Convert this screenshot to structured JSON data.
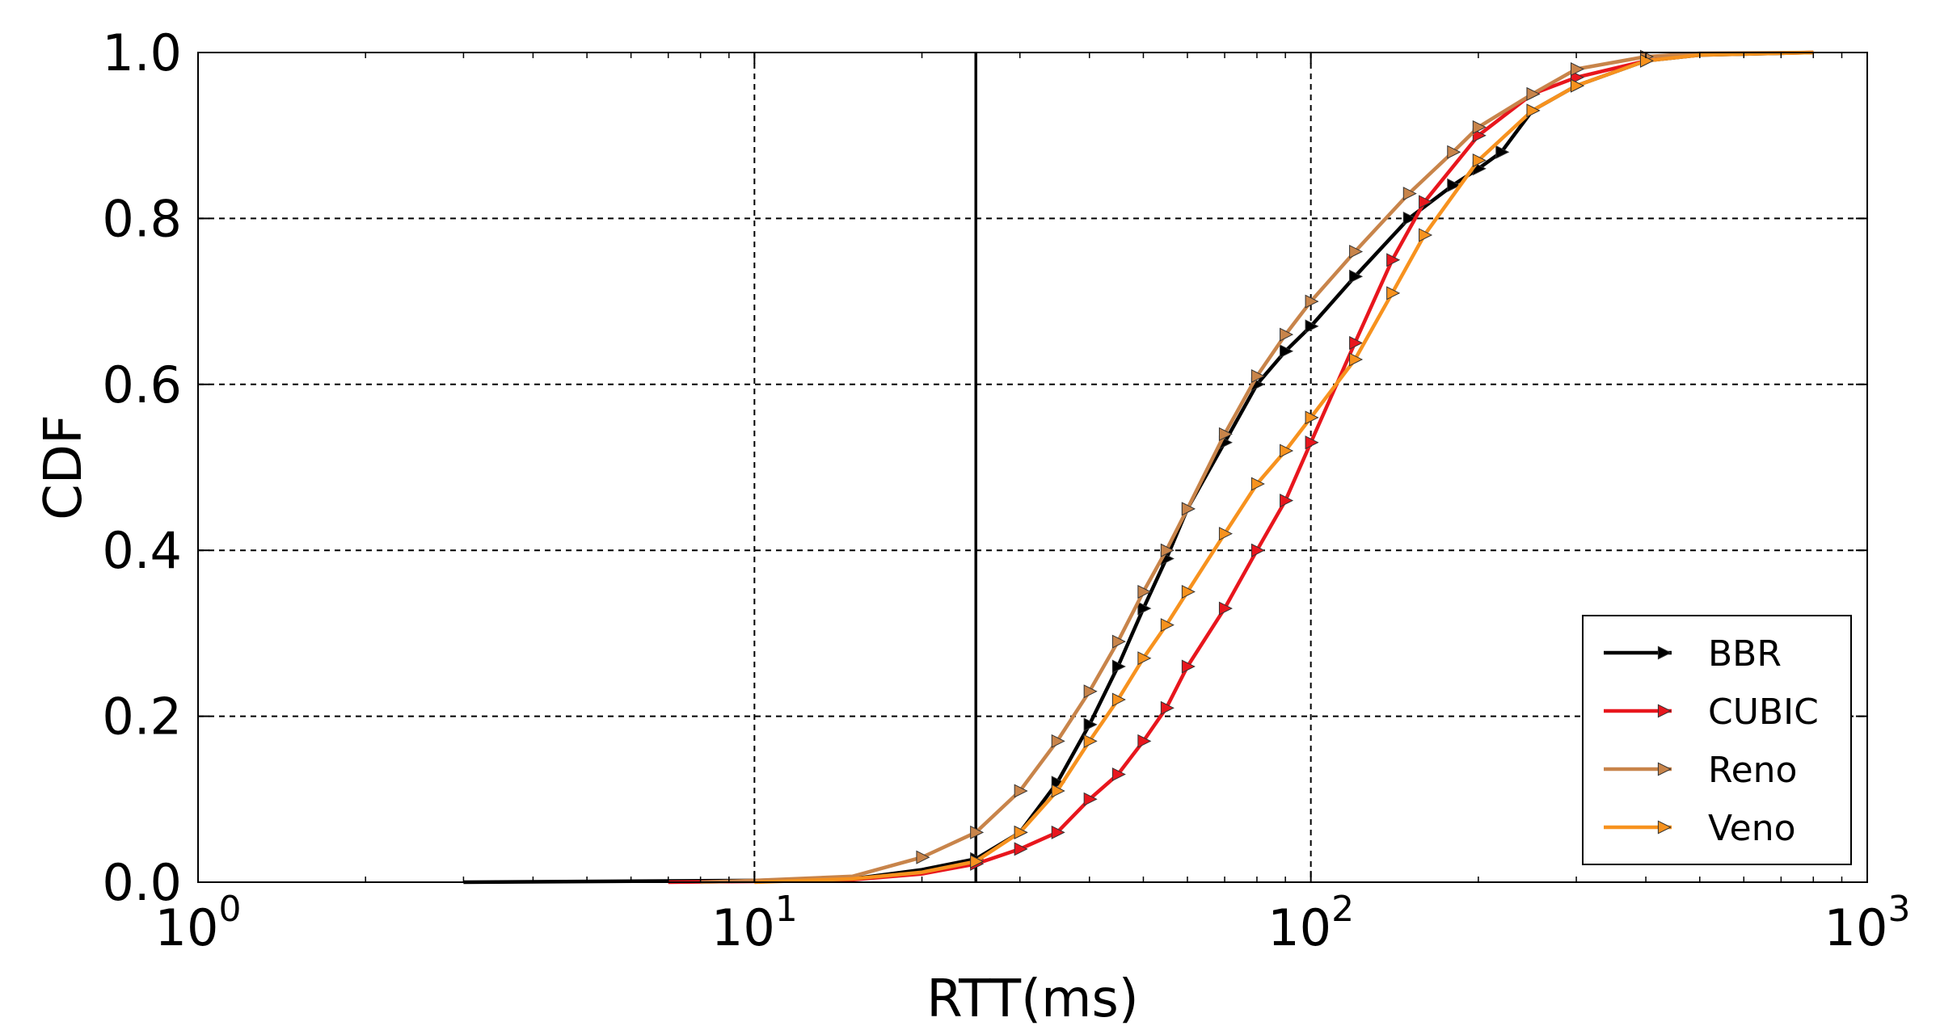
{
  "chart_data": {
    "type": "line",
    "xlabel": "RTT(ms)",
    "ylabel": "CDF",
    "xscale": "log",
    "xlim": [
      1,
      1000
    ],
    "ylim": [
      0,
      1
    ],
    "x_ticks": [
      {
        "value": 1,
        "base": "10",
        "exp": "0"
      },
      {
        "value": 10,
        "base": "10",
        "exp": "1"
      },
      {
        "value": 100,
        "base": "10",
        "exp": "2"
      },
      {
        "value": 1000,
        "base": "10",
        "exp": "3"
      }
    ],
    "y_ticks": [
      {
        "value": 0,
        "label": "0.0"
      },
      {
        "value": 0.2,
        "label": "0.2"
      },
      {
        "value": 0.4,
        "label": "0.4"
      },
      {
        "value": 0.6,
        "label": "0.6"
      },
      {
        "value": 0.8,
        "label": "0.8"
      },
      {
        "value": 1.0,
        "label": "1.0"
      }
    ],
    "grid": true,
    "legend_position": "lower-right",
    "reference_line_x": 25,
    "series": [
      {
        "name": "BBR",
        "color": "#000000",
        "x": [
          3,
          10,
          15,
          20,
          25,
          30,
          35,
          40,
          45,
          50,
          55,
          60,
          70,
          80,
          90,
          100,
          120,
          150,
          180,
          200,
          220,
          250,
          300,
          400,
          500,
          800
        ],
        "y": [
          0,
          0.002,
          0.004,
          0.015,
          0.028,
          0.06,
          0.12,
          0.19,
          0.26,
          0.33,
          0.39,
          0.45,
          0.53,
          0.6,
          0.64,
          0.67,
          0.73,
          0.8,
          0.84,
          0.86,
          0.88,
          0.93,
          0.96,
          0.99,
          0.997,
          1.0
        ]
      },
      {
        "name": "CUBIC",
        "color": "#e8161d",
        "x": [
          7,
          10,
          15,
          20,
          25,
          30,
          35,
          40,
          45,
          50,
          55,
          60,
          70,
          80,
          90,
          100,
          120,
          140,
          160,
          200,
          250,
          300,
          400,
          500,
          800
        ],
        "y": [
          0,
          0.001,
          0.003,
          0.01,
          0.022,
          0.04,
          0.06,
          0.1,
          0.13,
          0.17,
          0.21,
          0.26,
          0.33,
          0.4,
          0.46,
          0.53,
          0.65,
          0.75,
          0.82,
          0.9,
          0.95,
          0.97,
          0.99,
          0.998,
          1.0
        ]
      },
      {
        "name": "Reno",
        "color": "#c8844a",
        "x": [
          8,
          10,
          15,
          20,
          25,
          30,
          35,
          40,
          45,
          50,
          55,
          60,
          70,
          80,
          90,
          100,
          120,
          150,
          180,
          200,
          250,
          300,
          400,
          500,
          800
        ],
        "y": [
          0,
          0.002,
          0.007,
          0.03,
          0.06,
          0.11,
          0.17,
          0.23,
          0.29,
          0.35,
          0.4,
          0.45,
          0.54,
          0.61,
          0.66,
          0.7,
          0.76,
          0.83,
          0.88,
          0.91,
          0.95,
          0.98,
          0.995,
          0.999,
          1.0
        ]
      },
      {
        "name": "Veno",
        "color": "#f7921e",
        "x": [
          10,
          15,
          20,
          25,
          30,
          35,
          40,
          45,
          50,
          55,
          60,
          70,
          80,
          90,
          100,
          120,
          140,
          160,
          200,
          250,
          300,
          400,
          500,
          800
        ],
        "y": [
          0,
          0.004,
          0.012,
          0.025,
          0.06,
          0.11,
          0.17,
          0.22,
          0.27,
          0.31,
          0.35,
          0.42,
          0.48,
          0.52,
          0.56,
          0.63,
          0.71,
          0.78,
          0.87,
          0.93,
          0.96,
          0.99,
          0.997,
          1.0
        ]
      }
    ]
  }
}
